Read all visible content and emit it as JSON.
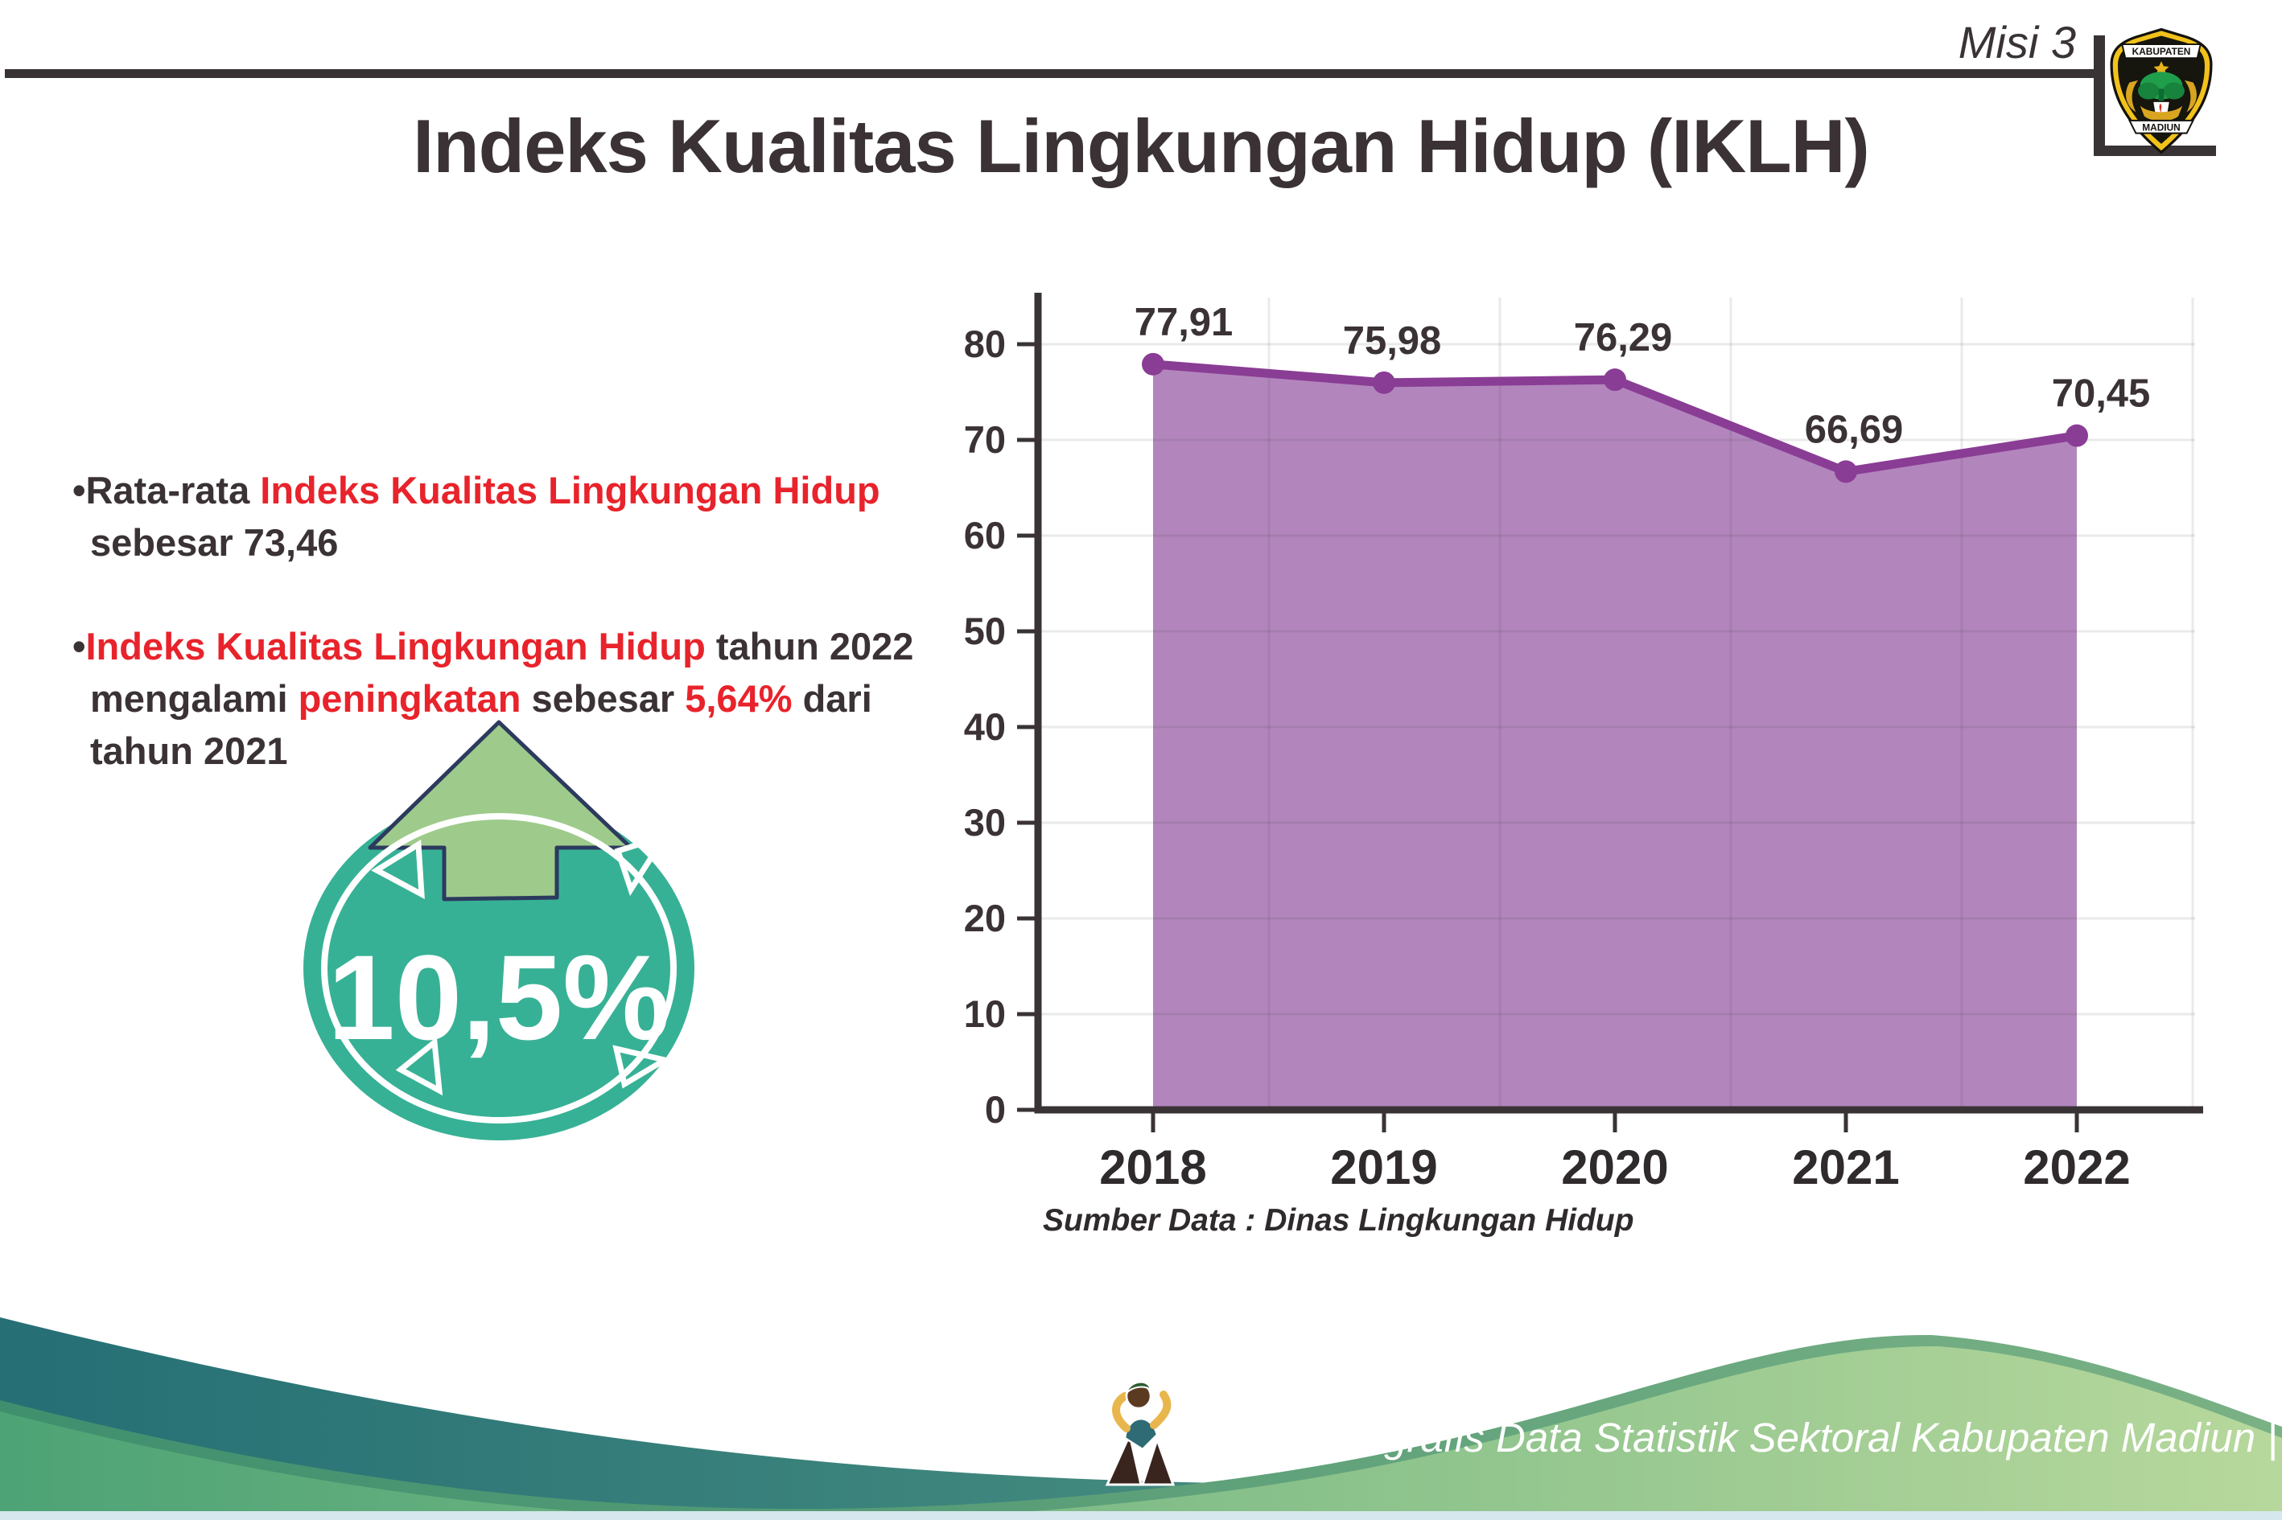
{
  "header": {
    "misi_label": "Misi 3",
    "title": "Indeks Kualitas Lingkungan Hidup (IKLH)",
    "logo_top_text": "KABUPATEN",
    "logo_bottom_text": "MADIUN"
  },
  "insights": {
    "bullet1": {
      "marker": "•",
      "segments": [
        {
          "text": "Rata-rata ",
          "color": "dark"
        },
        {
          "text": "Indeks Kualitas Lingkungan Hidup",
          "color": "red",
          "break": true
        },
        {
          "text": "sebesar 73,46",
          "color": "dark"
        }
      ]
    },
    "bullet2": {
      "marker": "•",
      "segments": [
        {
          "text": "Indeks Kualitas Lingkungan Hidup",
          "color": "red"
        },
        {
          "text": " tahun 2022",
          "color": "dark",
          "break": true
        },
        {
          "text": "mengalami ",
          "color": "dark"
        },
        {
          "text": "peningkatan",
          "color": "red"
        },
        {
          "text": " sebesar ",
          "color": "dark"
        },
        {
          "text": "5,64%",
          "color": "red"
        },
        {
          "text": " dari",
          "color": "dark",
          "break": true
        },
        {
          "text": "tahun 2021",
          "color": "dark"
        }
      ]
    }
  },
  "badge": {
    "value": "10,5%",
    "icon": "up-arrow",
    "circle_color": "#37b195",
    "arrow_color": "#9ecb8b"
  },
  "chart_data": {
    "type": "area",
    "categories": [
      "2018",
      "2019",
      "2020",
      "2021",
      "2022"
    ],
    "series": [
      {
        "name": "IKLH",
        "values": [
          77.91,
          75.98,
          76.29,
          66.69,
          70.45
        ]
      }
    ],
    "value_labels": [
      "77,91",
      "75,98",
      "76,29",
      "66,69",
      "70,45"
    ],
    "ylim": [
      0,
      80
    ],
    "ytick_step": 10,
    "grid": true,
    "legend": "none",
    "line_color": "#8a3d95",
    "fill_color": "#b286bd",
    "source_note": "Sumber Data : Dinas Lingkungan Hidup"
  },
  "footer": {
    "credit": "Media Infografis Data Statistik Sektoral Kabupaten Madiun |"
  },
  "colors": {
    "dark_text": "#3a3234",
    "red_text": "#e8232b",
    "axis": "#3a3335",
    "footer_teal_start": "#256f75",
    "footer_teal_end": "#5fa287",
    "footer_green_start": "#4da375",
    "footer_green_end": "#b7d89c",
    "logo_gold": "#f2c21c",
    "bottom_strip": "#d6e7ed"
  }
}
